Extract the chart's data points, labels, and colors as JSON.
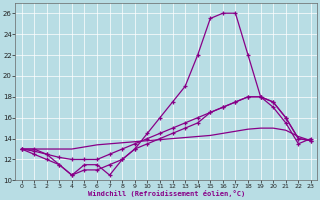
{
  "xlabel": "Windchill (Refroidissement éolien,°C)",
  "background_color": "#b8dde4",
  "line_color": "#880088",
  "grid_color": "#ffffff",
  "xlim_min": -0.5,
  "xlim_max": 23.5,
  "ylim_min": 10,
  "ylim_max": 27,
  "yticks": [
    10,
    12,
    14,
    16,
    18,
    20,
    22,
    24,
    26
  ],
  "xticks": [
    0,
    1,
    2,
    3,
    4,
    5,
    6,
    7,
    8,
    9,
    10,
    11,
    12,
    13,
    14,
    15,
    16,
    17,
    18,
    19,
    20,
    21,
    22,
    23
  ],
  "hours": [
    0,
    1,
    2,
    3,
    4,
    5,
    6,
    7,
    8,
    9,
    10,
    11,
    12,
    13,
    14,
    15,
    16,
    17,
    18,
    19,
    20,
    21,
    22,
    23
  ],
  "line_top": [
    13,
    13,
    12.5,
    11.5,
    10.5,
    11,
    11,
    11.5,
    12,
    13,
    14.5,
    16,
    17.5,
    19,
    22,
    25.5,
    26,
    26,
    22,
    18,
    17,
    15.5,
    13.5,
    14
  ],
  "line_mid_marked": [
    13,
    12.8,
    12.5,
    12.2,
    12,
    12,
    12,
    12.5,
    13,
    13.5,
    14,
    14.5,
    15,
    15.5,
    16,
    16.5,
    17,
    17.5,
    18,
    18,
    17.5,
    16,
    14,
    13.8
  ],
  "line_zigzag": [
    13,
    12.5,
    12,
    11.5,
    10.5,
    11.5,
    11.5,
    10.5,
    12,
    13,
    13.5,
    14,
    14.5,
    15,
    15.5,
    16.5,
    17,
    17.5,
    18,
    18,
    17.5,
    16,
    14,
    13.8
  ],
  "line_diagonal": [
    13,
    13,
    13,
    13,
    13,
    13.2,
    13.4,
    13.5,
    13.6,
    13.7,
    13.8,
    13.9,
    14,
    14.1,
    14.2,
    14.3,
    14.5,
    14.7,
    14.9,
    15,
    15,
    14.8,
    14.2,
    13.8
  ]
}
